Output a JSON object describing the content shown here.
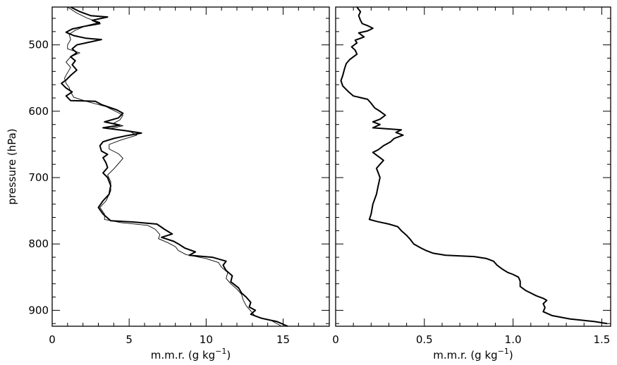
{
  "chart_data": [
    {
      "type": "line",
      "panel": "left",
      "ylabel": "pressure (hPa)",
      "xlabel_main": "m.m.r. (g kg",
      "xlabel_exp": "−1",
      "xlabel_close": ")",
      "xlim": [
        0,
        18
      ],
      "ylim": [
        924,
        443
      ],
      "y_reversed": true,
      "xticks": [
        0,
        5,
        10,
        15
      ],
      "xtick_labels": [
        "0",
        "5",
        "10",
        "15"
      ],
      "yticks": [
        500,
        600,
        700,
        800,
        900
      ],
      "ytick_labels": [
        "500",
        "600",
        "700",
        "800",
        "900"
      ],
      "grid": false,
      "series": [
        {
          "style": "thick",
          "points": [
            [
              1.2,
              443
            ],
            [
              1.8,
              450
            ],
            [
              2.5,
              456
            ],
            [
              3.6,
              458
            ],
            [
              2.6,
              463
            ],
            [
              3.1,
              468
            ],
            [
              2.1,
              472
            ],
            [
              1.3,
              476
            ],
            [
              0.9,
              481
            ],
            [
              1.4,
              486
            ],
            [
              2.2,
              490
            ],
            [
              3.2,
              492
            ],
            [
              2.4,
              496
            ],
            [
              1.6,
              500
            ],
            [
              1.3,
              506
            ],
            [
              1.6,
              512
            ],
            [
              1.2,
              518
            ],
            [
              1.5,
              524
            ],
            [
              1.3,
              530
            ],
            [
              1.6,
              538
            ],
            [
              1.2,
              546
            ],
            [
              0.9,
              553
            ],
            [
              0.6,
              558
            ],
            [
              0.9,
              565
            ],
            [
              1.3,
              571
            ],
            [
              0.9,
              577
            ],
            [
              1.2,
              584
            ],
            [
              2.8,
              585
            ],
            [
              3.2,
              590
            ],
            [
              4.2,
              598
            ],
            [
              4.6,
              603
            ],
            [
              4.3,
              610
            ],
            [
              3.4,
              616
            ],
            [
              4.4,
              621
            ],
            [
              3.3,
              625
            ],
            [
              4.7,
              629
            ],
            [
              5.8,
              633
            ],
            [
              4.8,
              637
            ],
            [
              4.0,
              641
            ],
            [
              3.3,
              646
            ],
            [
              3.1,
              652
            ],
            [
              3.2,
              660
            ],
            [
              3.6,
              665
            ],
            [
              3.3,
              670
            ],
            [
              3.5,
              678
            ],
            [
              3.6,
              685
            ],
            [
              3.3,
              693
            ],
            [
              3.6,
              700
            ],
            [
              3.8,
              712
            ],
            [
              3.7,
              725
            ],
            [
              3.3,
              735
            ],
            [
              3.0,
              745
            ],
            [
              3.3,
              755
            ],
            [
              3.8,
              765
            ],
            [
              5.3,
              767
            ],
            [
              6.8,
              770
            ],
            [
              7.3,
              778
            ],
            [
              7.8,
              785
            ],
            [
              7.1,
              790
            ],
            [
              7.9,
              796
            ],
            [
              8.2,
              800
            ],
            [
              8.6,
              806
            ],
            [
              9.3,
              812
            ],
            [
              8.9,
              817
            ],
            [
              10.4,
              820
            ],
            [
              11.3,
              826
            ],
            [
              11.1,
              832
            ],
            [
              11.3,
              840
            ],
            [
              11.7,
              848
            ],
            [
              11.6,
              857
            ],
            [
              12.1,
              866
            ],
            [
              12.3,
              874
            ],
            [
              12.6,
              880
            ],
            [
              12.9,
              888
            ],
            [
              12.8,
              895
            ],
            [
              13.2,
              900
            ],
            [
              12.9,
              906
            ],
            [
              13.6,
              912
            ],
            [
              14.6,
              917
            ],
            [
              15.3,
              924
            ]
          ]
        },
        {
          "style": "thin",
          "points": [
            [
              1.0,
              443
            ],
            [
              1.6,
              452
            ],
            [
              2.3,
              460
            ],
            [
              3.1,
              466
            ],
            [
              2.2,
              471
            ],
            [
              1.5,
              478
            ],
            [
              1.1,
              484
            ],
            [
              1.2,
              492
            ],
            [
              1.0,
              500
            ],
            [
              1.0,
              506
            ],
            [
              1.8,
              512
            ],
            [
              1.2,
              518
            ],
            [
              0.9,
              526
            ],
            [
              1.2,
              534
            ],
            [
              1.0,
              542
            ],
            [
              0.8,
              550
            ],
            [
              0.9,
              558
            ],
            [
              1.1,
              564
            ],
            [
              1.2,
              571
            ],
            [
              1.4,
              579
            ],
            [
              2.2,
              585
            ],
            [
              3.5,
              593
            ],
            [
              4.1,
              600
            ],
            [
              4.6,
              606
            ],
            [
              4.4,
              613
            ],
            [
              4.0,
              618
            ],
            [
              4.6,
              622
            ],
            [
              3.8,
              626
            ],
            [
              5.1,
              631
            ],
            [
              5.5,
              636
            ],
            [
              4.5,
              643
            ],
            [
              3.7,
              650
            ],
            [
              3.7,
              657
            ],
            [
              4.3,
              664
            ],
            [
              4.6,
              671
            ],
            [
              4.3,
              679
            ],
            [
              4.0,
              687
            ],
            [
              3.6,
              696
            ],
            [
              3.8,
              706
            ],
            [
              3.8,
              720
            ],
            [
              3.5,
              735
            ],
            [
              3.1,
              745
            ],
            [
              3.4,
              755
            ],
            [
              3.4,
              763
            ],
            [
              4.5,
              768
            ],
            [
              6.2,
              772
            ],
            [
              6.7,
              778
            ],
            [
              7.0,
              786
            ],
            [
              6.9,
              792
            ],
            [
              7.5,
              798
            ],
            [
              8.0,
              804
            ],
            [
              8.2,
              810
            ],
            [
              8.7,
              816
            ],
            [
              10.0,
              822
            ],
            [
              10.8,
              828
            ],
            [
              11.0,
              835
            ],
            [
              11.4,
              843
            ],
            [
              11.3,
              852
            ],
            [
              11.6,
              860
            ],
            [
              12.0,
              868
            ],
            [
              12.3,
              876
            ],
            [
              12.4,
              884
            ],
            [
              12.6,
              893
            ],
            [
              12.9,
              901
            ],
            [
              13.2,
              909
            ],
            [
              14.2,
              915
            ],
            [
              14.9,
              924
            ]
          ]
        }
      ]
    },
    {
      "type": "line",
      "panel": "right",
      "xlabel_main": "m.m.r. (g kg",
      "xlabel_exp": "−1",
      "xlabel_close": ")",
      "xlim": [
        0,
        1.55
      ],
      "ylim": [
        924,
        443
      ],
      "y_reversed": true,
      "xticks": [
        0,
        0.5,
        1.0,
        1.5
      ],
      "xtick_labels": [
        "0",
        "0.5",
        "1.0",
        "1.5"
      ],
      "yticks": [
        500,
        600,
        700,
        800,
        900
      ],
      "grid": false,
      "series": [
        {
          "style": "thick",
          "points": [
            [
              0.12,
              443
            ],
            [
              0.14,
              450
            ],
            [
              0.13,
              456
            ],
            [
              0.14,
              463
            ],
            [
              0.15,
              468
            ],
            [
              0.18,
              471
            ],
            [
              0.21,
              475
            ],
            [
              0.18,
              479
            ],
            [
              0.13,
              482
            ],
            [
              0.16,
              488
            ],
            [
              0.11,
              493
            ],
            [
              0.12,
              497
            ],
            [
              0.09,
              503
            ],
            [
              0.11,
              508
            ],
            [
              0.12,
              514
            ],
            [
              0.1,
              518
            ],
            [
              0.08,
              522
            ],
            [
              0.06,
              528
            ],
            [
              0.05,
              536
            ],
            [
              0.04,
              546
            ],
            [
              0.03,
              554
            ],
            [
              0.04,
              562
            ],
            [
              0.07,
              570
            ],
            [
              0.1,
              577
            ],
            [
              0.18,
              582
            ],
            [
              0.2,
              588
            ],
            [
              0.22,
              595
            ],
            [
              0.25,
              600
            ],
            [
              0.28,
              606
            ],
            [
              0.25,
              612
            ],
            [
              0.21,
              616
            ],
            [
              0.25,
              620
            ],
            [
              0.21,
              625
            ],
            [
              0.37,
              628
            ],
            [
              0.34,
              632
            ],
            [
              0.38,
              636
            ],
            [
              0.33,
              641
            ],
            [
              0.31,
              646
            ],
            [
              0.27,
              652
            ],
            [
              0.24,
              658
            ],
            [
              0.21,
              662
            ],
            [
              0.24,
              668
            ],
            [
              0.27,
              674
            ],
            [
              0.25,
              680
            ],
            [
              0.23,
              686
            ],
            [
              0.24,
              693
            ],
            [
              0.25,
              700
            ],
            [
              0.24,
              712
            ],
            [
              0.23,
              725
            ],
            [
              0.21,
              740
            ],
            [
              0.2,
              755
            ],
            [
              0.19,
              763
            ],
            [
              0.23,
              766
            ],
            [
              0.3,
              770
            ],
            [
              0.35,
              774
            ],
            [
              0.37,
              780
            ],
            [
              0.4,
              787
            ],
            [
              0.42,
              793
            ],
            [
              0.44,
              800
            ],
            [
              0.48,
              806
            ],
            [
              0.51,
              810
            ],
            [
              0.55,
              814
            ],
            [
              0.62,
              817
            ],
            [
              0.78,
              819
            ],
            [
              0.85,
              822
            ],
            [
              0.89,
              826
            ],
            [
              0.91,
              832
            ],
            [
              0.94,
              838
            ],
            [
              0.97,
              843
            ],
            [
              1.0,
              846
            ],
            [
              1.03,
              850
            ],
            [
              1.04,
              856
            ],
            [
              1.04,
              864
            ],
            [
              1.07,
              870
            ],
            [
              1.1,
              874
            ],
            [
              1.13,
              878
            ],
            [
              1.17,
              882
            ],
            [
              1.19,
              885
            ],
            [
              1.17,
              890
            ],
            [
              1.18,
              896
            ],
            [
              1.17,
              902
            ],
            [
              1.22,
              908
            ],
            [
              1.32,
              913
            ],
            [
              1.46,
              917
            ],
            [
              1.53,
              920
            ]
          ]
        }
      ]
    }
  ]
}
